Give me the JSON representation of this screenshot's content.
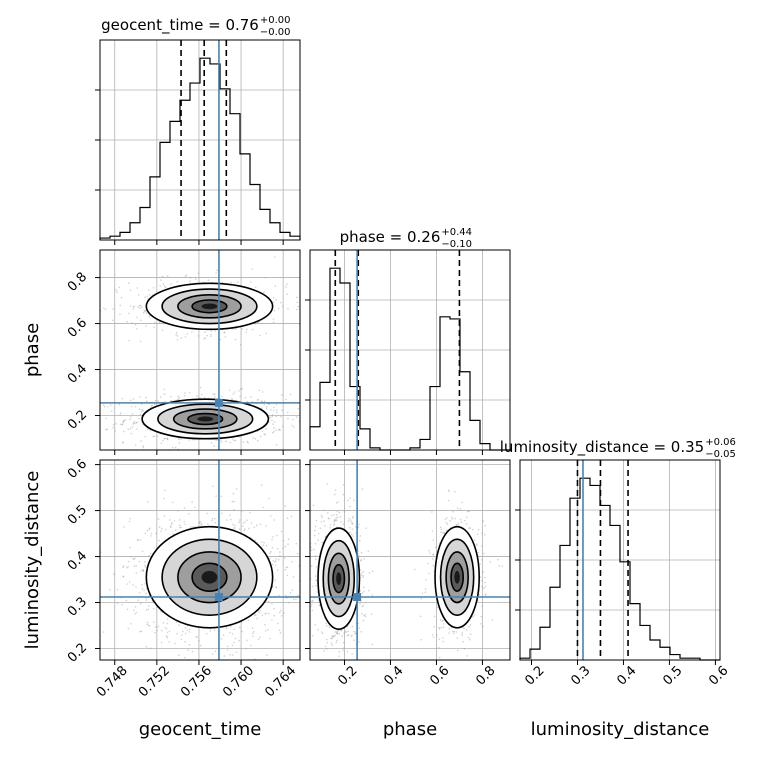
{
  "chart_data": {
    "type": "corner",
    "parameters": [
      "geocent_time",
      "phase",
      "luminosity_distance"
    ],
    "axis_labels": {
      "geocent_time": "geocent_time",
      "phase": "phase",
      "luminosity_distance": "luminosity_distance"
    },
    "ranges": {
      "geocent_time": [
        0.7466,
        0.7656
      ],
      "phase": [
        0.05,
        0.92
      ],
      "luminosity_distance": [
        0.175,
        0.61
      ]
    },
    "ticks": {
      "geocent_time": {
        "values": [
          0.748,
          0.752,
          0.756,
          0.76,
          0.764
        ],
        "labels": [
          "0.748",
          "0.752",
          "0.756",
          "0.760",
          "0.764"
        ]
      },
      "phase": {
        "values": [
          0.2,
          0.4,
          0.6,
          0.8
        ],
        "labels": [
          "0.2",
          "0.4",
          "0.6",
          "0.8"
        ]
      },
      "luminosity_distance": {
        "values": [
          0.2,
          0.3,
          0.4,
          0.5,
          0.6
        ],
        "labels": [
          "0.2",
          "0.3",
          "0.4",
          "0.5",
          "0.6"
        ]
      }
    },
    "truths": {
      "geocent_time": 0.7579,
      "phase": 0.255,
      "luminosity_distance": 0.312
    },
    "truth_color": "#4682b4",
    "quantile_color": "#000000",
    "grid": true,
    "titles": [
      {
        "param": "geocent_time",
        "text": "geocent_time = 0.76",
        "sup": "+0.00",
        "sub": "−0.00"
      },
      {
        "param": "phase",
        "text": "phase = 0.26",
        "sup": "+0.44",
        "sub": "−0.10"
      },
      {
        "param": "luminosity_distance",
        "text": "luminosity_distance = 0.35",
        "sup": "+0.06",
        "sub": "−0.05"
      }
    ],
    "histograms": {
      "geocent_time": {
        "edges": [
          0.7466,
          0.74755,
          0.7485,
          0.74945,
          0.7504,
          0.75135,
          0.7523,
          0.75325,
          0.7542,
          0.75515,
          0.7561,
          0.75705,
          0.758,
          0.75895,
          0.7599,
          0.76085,
          0.7618,
          0.76275,
          0.7637,
          0.76465,
          0.7656
        ],
        "counts": [
          1,
          2,
          4,
          9,
          17,
          33,
          51,
          62,
          73,
          82,
          95,
          92,
          79,
          66,
          45,
          29,
          16,
          9,
          4,
          2
        ],
        "quantiles": [
          0.7543,
          0.7565,
          0.7586
        ]
      },
      "phase": {
        "edges": [
          0.05,
          0.0935,
          0.137,
          0.1805,
          0.224,
          0.2675,
          0.311,
          0.3545,
          0.398,
          0.4415,
          0.485,
          0.5285,
          0.572,
          0.6155,
          0.659,
          0.7025,
          0.746,
          0.7895,
          0.833,
          0.8765,
          0.92
        ],
        "counts": [
          11,
          32,
          86,
          79,
          30,
          10,
          1,
          0,
          0,
          0,
          1,
          5,
          30,
          63,
          62,
          37,
          14,
          3,
          0,
          0
        ],
        "quantiles": [
          0.16,
          0.26,
          0.7
        ]
      },
      "luminosity_distance": {
        "edges": [
          0.175,
          0.19675,
          0.2185,
          0.24025,
          0.262,
          0.28375,
          0.3055,
          0.32725,
          0.349,
          0.37075,
          0.3925,
          0.41425,
          0.436,
          0.45775,
          0.4795,
          0.50125,
          0.523,
          0.54475,
          0.5665,
          0.58825,
          0.61
        ],
        "counts": [
          1,
          6,
          18,
          40,
          63,
          89,
          100,
          96,
          85,
          74,
          54,
          31,
          19,
          11,
          7,
          3,
          1,
          1,
          0,
          0
        ],
        "quantiles": [
          0.3,
          0.35,
          0.41
        ]
      }
    },
    "pairs": [
      {
        "x": "geocent_time",
        "y": "phase",
        "modes": [
          {
            "cx": 0.7566,
            "cy": 0.185,
            "sx": 0.003,
            "sy": 0.043,
            "weight": 0.62
          },
          {
            "cx": 0.757,
            "cy": 0.675,
            "sx": 0.003,
            "sy": 0.05,
            "weight": 0.38
          }
        ]
      },
      {
        "x": "geocent_time",
        "y": "luminosity_distance",
        "modes": [
          {
            "cx": 0.757,
            "cy": 0.355,
            "sx": 0.003,
            "sy": 0.055,
            "weight": 1.0
          }
        ]
      },
      {
        "x": "phase",
        "y": "luminosity_distance",
        "modes": [
          {
            "cx": 0.175,
            "cy": 0.352,
            "sx": 0.045,
            "sy": 0.055,
            "weight": 0.62
          },
          {
            "cx": 0.69,
            "cy": 0.355,
            "sx": 0.048,
            "sy": 0.055,
            "weight": 0.38
          }
        ]
      }
    ]
  }
}
